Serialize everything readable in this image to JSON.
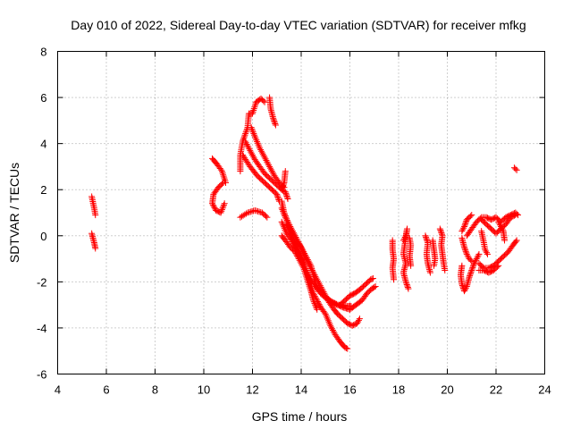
{
  "chart_data": {
    "type": "scatter",
    "title": "Day 010 of 2022, Sidereal Day-to-day VTEC variation (SDTVAR) for receiver mfkg",
    "xlabel": "GPS time / hours",
    "ylabel": "SDTVAR / TECUs",
    "xlim": [
      4,
      24
    ],
    "ylim": [
      -6,
      8
    ],
    "xticks": [
      "4",
      "6",
      "8",
      "10",
      "12",
      "14",
      "16",
      "18",
      "20",
      "22",
      "24"
    ],
    "yticks": [
      "-6",
      "-4",
      "-2",
      "0",
      "2",
      "4",
      "6",
      "8"
    ],
    "grid": true,
    "marker": "plus",
    "color": "#ff0000",
    "segments": [
      {
        "points": [
          [
            5.4,
            1.7
          ],
          [
            5.5,
            1.2
          ],
          [
            5.55,
            0.9
          ]
        ]
      },
      {
        "points": [
          [
            5.4,
            0.1
          ],
          [
            5.5,
            -0.3
          ],
          [
            5.55,
            -0.55
          ]
        ]
      },
      {
        "points": [
          [
            10.35,
            3.35
          ],
          [
            10.55,
            3.1
          ],
          [
            10.75,
            2.8
          ],
          [
            10.9,
            2.3
          ]
        ]
      },
      {
        "points": [
          [
            10.8,
            2.3
          ],
          [
            10.6,
            2.1
          ],
          [
            10.4,
            1.8
          ],
          [
            10.35,
            1.4
          ],
          [
            10.5,
            1.1
          ],
          [
            10.7,
            1.0
          ],
          [
            10.85,
            1.4
          ]
        ]
      },
      {
        "points": [
          [
            11.5,
            2.8
          ],
          [
            11.5,
            3.5
          ],
          [
            11.6,
            4.1
          ],
          [
            11.8,
            4.7
          ],
          [
            11.85,
            5.3
          ],
          [
            12.0,
            5.3
          ],
          [
            12.15,
            5.8
          ],
          [
            12.35,
            5.95
          ],
          [
            12.5,
            5.8
          ]
        ]
      },
      {
        "points": [
          [
            12.7,
            6.0
          ],
          [
            12.75,
            5.5
          ],
          [
            12.85,
            5.1
          ],
          [
            12.95,
            4.8
          ]
        ]
      },
      {
        "points": [
          [
            11.7,
            4.1
          ],
          [
            11.9,
            3.7
          ],
          [
            12.1,
            3.3
          ],
          [
            12.3,
            3.0
          ],
          [
            12.5,
            2.7
          ],
          [
            12.8,
            2.4
          ],
          [
            13.0,
            2.2
          ],
          [
            13.2,
            2.0
          ],
          [
            13.35,
            1.9
          ],
          [
            13.45,
            1.6
          ]
        ]
      },
      {
        "points": [
          [
            11.6,
            3.5
          ],
          [
            11.9,
            3.0
          ],
          [
            12.2,
            2.6
          ],
          [
            12.5,
            2.3
          ],
          [
            12.8,
            2.0
          ],
          [
            13.0,
            1.8
          ],
          [
            13.1,
            1.5
          ]
        ]
      },
      {
        "points": [
          [
            11.95,
            4.7
          ],
          [
            12.1,
            4.3
          ],
          [
            12.3,
            3.8
          ],
          [
            12.5,
            3.4
          ],
          [
            12.7,
            3.0
          ],
          [
            12.9,
            2.6
          ],
          [
            13.1,
            2.3
          ],
          [
            13.3,
            2.1
          ]
        ]
      },
      {
        "points": [
          [
            11.5,
            0.8
          ],
          [
            11.8,
            1.0
          ],
          [
            12.1,
            1.1
          ],
          [
            12.4,
            1.0
          ],
          [
            12.6,
            0.8
          ]
        ]
      },
      {
        "points": [
          [
            13.2,
            1.5
          ],
          [
            13.3,
            1.0
          ],
          [
            13.45,
            0.6
          ],
          [
            13.6,
            0.2
          ],
          [
            13.8,
            -0.2
          ],
          [
            14.0,
            -0.5
          ],
          [
            14.2,
            -0.9
          ],
          [
            14.4,
            -1.3
          ],
          [
            14.5,
            -1.7
          ],
          [
            14.6,
            -2.1
          ],
          [
            14.75,
            -2.4
          ],
          [
            14.95,
            -2.6
          ],
          [
            15.1,
            -2.75
          ],
          [
            15.3,
            -2.9
          ],
          [
            15.5,
            -3.0
          ],
          [
            15.7,
            -3.0
          ],
          [
            15.9,
            -3.05
          ],
          [
            16.05,
            -3.05
          ]
        ]
      },
      {
        "points": [
          [
            13.4,
            0.5
          ],
          [
            13.6,
            0.0
          ],
          [
            13.8,
            -0.5
          ],
          [
            14.0,
            -1.0
          ],
          [
            14.2,
            -1.5
          ],
          [
            14.4,
            -1.9
          ],
          [
            14.6,
            -2.2
          ],
          [
            14.8,
            -2.5
          ],
          [
            15.0,
            -2.7
          ],
          [
            15.25,
            -2.85
          ],
          [
            15.5,
            -3.0
          ],
          [
            15.7,
            -3.1
          ],
          [
            15.85,
            -3.15
          ],
          [
            16.0,
            -3.2
          ]
        ]
      },
      {
        "points": [
          [
            13.2,
            0.0
          ],
          [
            13.35,
            -0.2
          ],
          [
            13.55,
            -0.5
          ],
          [
            13.75,
            -0.7
          ],
          [
            13.9,
            -1.0
          ],
          [
            14.1,
            -1.4
          ],
          [
            14.25,
            -1.9
          ],
          [
            14.4,
            -2.4
          ],
          [
            14.5,
            -2.8
          ],
          [
            14.65,
            -3.2
          ]
        ]
      },
      {
        "points": [
          [
            13.2,
            0.6
          ],
          [
            13.4,
            0.1
          ],
          [
            13.6,
            -0.2
          ],
          [
            13.8,
            -0.6
          ],
          [
            14.0,
            -0.9
          ],
          [
            14.2,
            -1.5
          ],
          [
            14.35,
            -2.0
          ],
          [
            14.5,
            -2.5
          ],
          [
            14.65,
            -2.8
          ],
          [
            14.8,
            -3.1
          ],
          [
            15.0,
            -3.4
          ],
          [
            15.2,
            -3.9
          ],
          [
            15.4,
            -4.3
          ],
          [
            15.6,
            -4.6
          ],
          [
            15.8,
            -4.85
          ],
          [
            15.9,
            -4.9
          ]
        ]
      },
      {
        "points": [
          [
            13.2,
            1.2
          ],
          [
            13.35,
            0.8
          ],
          [
            13.55,
            0.4
          ],
          [
            13.75,
            0.0
          ],
          [
            13.95,
            -0.4
          ],
          [
            14.15,
            -0.9
          ],
          [
            14.35,
            -1.3
          ],
          [
            14.55,
            -1.7
          ],
          [
            14.75,
            -2.1
          ],
          [
            14.95,
            -2.5
          ],
          [
            15.15,
            -2.9
          ],
          [
            15.35,
            -3.2
          ],
          [
            15.5,
            -3.4
          ],
          [
            15.7,
            -3.6
          ],
          [
            15.9,
            -3.8
          ],
          [
            16.1,
            -3.9
          ],
          [
            16.3,
            -3.8
          ],
          [
            16.4,
            -3.6
          ]
        ]
      },
      {
        "points": [
          [
            13.2,
            2.0
          ],
          [
            13.3,
            2.3
          ],
          [
            13.35,
            2.8
          ]
        ]
      },
      {
        "points": [
          [
            16.0,
            -3.2
          ],
          [
            16.25,
            -3.0
          ],
          [
            16.5,
            -2.8
          ],
          [
            16.7,
            -2.5
          ],
          [
            16.9,
            -2.3
          ],
          [
            17.05,
            -2.2
          ]
        ]
      },
      {
        "points": [
          [
            15.6,
            -3.0
          ],
          [
            15.8,
            -2.8
          ],
          [
            16.0,
            -2.6
          ],
          [
            16.2,
            -2.5
          ],
          [
            16.45,
            -2.3
          ],
          [
            16.65,
            -2.1
          ],
          [
            16.85,
            -1.9
          ],
          [
            16.95,
            -1.85
          ]
        ]
      },
      {
        "points": [
          [
            17.75,
            -0.2
          ],
          [
            17.75,
            -0.6
          ],
          [
            17.8,
            -1.0
          ],
          [
            17.75,
            -1.4
          ],
          [
            17.8,
            -1.9
          ]
        ]
      },
      {
        "points": [
          [
            18.2,
            -0.2
          ],
          [
            18.3,
            0.0
          ],
          [
            18.35,
            0.3
          ],
          [
            18.25,
            -0.4
          ],
          [
            18.2,
            -0.8
          ],
          [
            18.3,
            -1.2
          ],
          [
            18.2,
            -1.6
          ],
          [
            18.3,
            -2.0
          ],
          [
            18.4,
            -2.3
          ]
        ]
      },
      {
        "points": [
          [
            18.45,
            -0.1
          ],
          [
            18.5,
            -0.4
          ],
          [
            18.45,
            -0.9
          ],
          [
            18.5,
            -1.3
          ]
        ]
      },
      {
        "points": [
          [
            19.1,
            0.0
          ],
          [
            19.2,
            -0.3
          ],
          [
            19.15,
            -0.8
          ],
          [
            19.2,
            -1.2
          ],
          [
            19.3,
            -1.6
          ]
        ]
      },
      {
        "points": [
          [
            19.4,
            -0.2
          ],
          [
            19.45,
            -0.6
          ],
          [
            19.5,
            -1.0
          ],
          [
            19.45,
            -1.3
          ]
        ]
      },
      {
        "points": [
          [
            19.7,
            0.3
          ],
          [
            19.8,
            0.0
          ],
          [
            19.75,
            -0.4
          ],
          [
            19.8,
            -0.8
          ],
          [
            19.85,
            -1.2
          ],
          [
            19.9,
            -1.5
          ]
        ]
      },
      {
        "points": [
          [
            20.6,
            -1.3
          ],
          [
            20.55,
            -1.7
          ],
          [
            20.6,
            -2.1
          ],
          [
            20.7,
            -2.4
          ],
          [
            20.8,
            -2.2
          ],
          [
            20.9,
            -1.8
          ],
          [
            21.0,
            -1.5
          ],
          [
            21.1,
            -1.2
          ],
          [
            21.2,
            -1.0
          ],
          [
            21.3,
            -0.8
          ]
        ]
      },
      {
        "points": [
          [
            20.6,
            0.2
          ],
          [
            20.7,
            0.4
          ],
          [
            20.8,
            0.7
          ],
          [
            20.9,
            0.8
          ],
          [
            21.0,
            0.9
          ]
        ]
      },
      {
        "points": [
          [
            20.6,
            -0.1
          ],
          [
            20.7,
            -0.5
          ],
          [
            20.8,
            -0.8
          ],
          [
            20.9,
            -1.0
          ],
          [
            21.0,
            -1.1
          ]
        ]
      },
      {
        "points": [
          [
            20.8,
            0.0
          ],
          [
            21.0,
            0.3
          ],
          [
            21.2,
            0.6
          ],
          [
            21.4,
            0.8
          ],
          [
            21.6,
            0.8
          ],
          [
            21.8,
            0.7
          ],
          [
            22.0,
            0.8
          ],
          [
            22.2,
            0.6
          ],
          [
            22.4,
            0.8
          ],
          [
            22.6,
            0.9
          ],
          [
            22.8,
            1.0
          ],
          [
            22.9,
            0.9
          ]
        ]
      },
      {
        "points": [
          [
            21.4,
            0.7
          ],
          [
            21.6,
            0.5
          ],
          [
            21.8,
            0.3
          ],
          [
            22.0,
            0.1
          ],
          [
            22.2,
            0.3
          ],
          [
            22.4,
            0.5
          ],
          [
            22.6,
            0.8
          ],
          [
            22.8,
            0.9
          ]
        ]
      },
      {
        "points": [
          [
            21.4,
            0.2
          ],
          [
            21.5,
            -0.3
          ],
          [
            21.55,
            -0.6
          ],
          [
            21.65,
            -0.8
          ]
        ]
      },
      {
        "points": [
          [
            21.3,
            -1.2
          ],
          [
            21.5,
            -1.4
          ],
          [
            21.7,
            -1.4
          ],
          [
            21.9,
            -1.3
          ],
          [
            22.1,
            -1.1
          ],
          [
            22.3,
            -0.9
          ],
          [
            22.5,
            -0.7
          ],
          [
            22.7,
            -0.4
          ],
          [
            22.85,
            -0.2
          ]
        ]
      },
      {
        "points": [
          [
            21.3,
            -1.5
          ],
          [
            21.5,
            -1.5
          ],
          [
            21.7,
            -1.6
          ],
          [
            21.9,
            -1.5
          ],
          [
            22.1,
            -1.3
          ]
        ]
      },
      {
        "points": [
          [
            22.1,
            0.6
          ],
          [
            22.3,
            0.2
          ],
          [
            22.35,
            -0.2
          ]
        ]
      },
      {
        "points": [
          [
            22.75,
            2.95
          ],
          [
            22.85,
            2.85
          ]
        ]
      }
    ]
  }
}
